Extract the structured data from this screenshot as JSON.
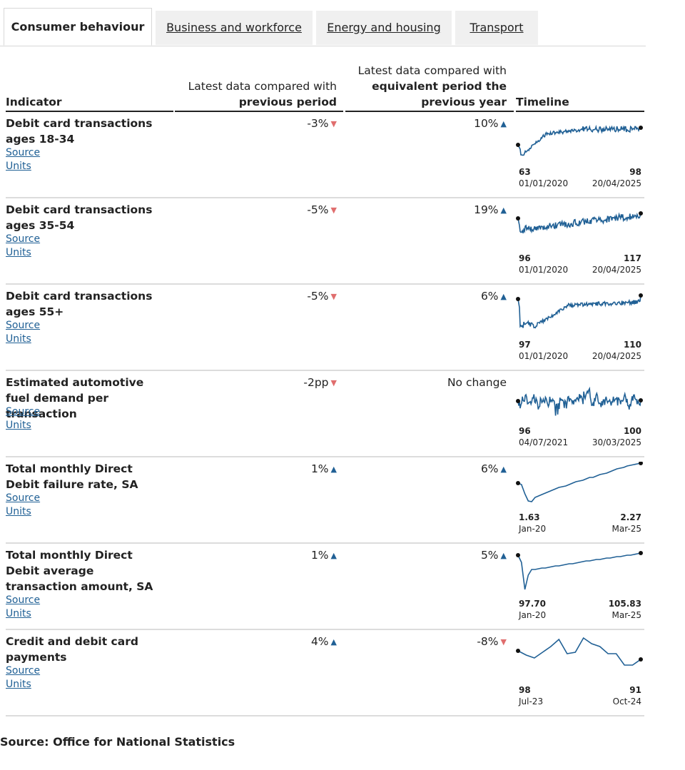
{
  "tabs": [
    {
      "label": "Consumer behaviour",
      "active": true
    },
    {
      "label": "Business and workforce",
      "active": false
    },
    {
      "label": "Energy and housing",
      "active": false
    },
    {
      "label": "Transport",
      "active": false
    }
  ],
  "table_header": {
    "indicator": "Indicator",
    "prev_line1": "Latest data compared with",
    "prev_line2": "previous period",
    "year_line1": "Latest data compared with",
    "year_line2": "equivalent period the",
    "year_line3": "previous year",
    "timeline": "Timeline"
  },
  "colors": {
    "line": "#206095",
    "up_arrow": "#206095",
    "down_arrow": "#e06e6e",
    "link": "#206095"
  },
  "rows": [
    {
      "title": "Debit card transactions ages 18-34",
      "source": "Source",
      "units": "Units",
      "prev": "-3%",
      "prev_dir": "down",
      "year": "10%",
      "year_dir": "up",
      "start_value": "63",
      "end_value": "98",
      "start_date": "01/01/2020",
      "end_date": "20/04/2025"
    },
    {
      "title": "Debit card transactions ages 35-54",
      "source": "Source",
      "units": "Units",
      "prev": "-5%",
      "prev_dir": "down",
      "year": "19%",
      "year_dir": "up",
      "start_value": "96",
      "end_value": "117",
      "start_date": "01/01/2020",
      "end_date": "20/04/2025"
    },
    {
      "title": "Debit card transactions ages 55+",
      "source": "Source",
      "units": "Units",
      "prev": "-5%",
      "prev_dir": "down",
      "year": "6%",
      "year_dir": "up",
      "start_value": "97",
      "end_value": "110",
      "start_date": "01/01/2020",
      "end_date": "20/04/2025"
    },
    {
      "title": "Estimated automotive fuel demand per transaction",
      "source": "Source",
      "units": "Units",
      "prev": "-2pp",
      "prev_dir": "down",
      "year": "No change",
      "year_dir": "none",
      "start_value": "96",
      "end_value": "100",
      "start_date": "04/07/2021",
      "end_date": "30/03/2025"
    },
    {
      "title": "Total monthly Direct Debit failure rate, SA",
      "source": "Source",
      "units": "Units",
      "prev": "1%",
      "prev_dir": "up",
      "year": "6%",
      "year_dir": "up",
      "start_value": "1.63",
      "end_value": "2.27",
      "start_date": "Jan-20",
      "end_date": "Mar-25"
    },
    {
      "title": "Total monthly Direct Debit average transaction amount, SA",
      "source": "Source",
      "units": "Units",
      "prev": "1%",
      "prev_dir": "up",
      "year": "5%",
      "year_dir": "up",
      "start_value": "97.70",
      "end_value": "105.83",
      "start_date": "Jan-20",
      "end_date": "Mar-25"
    },
    {
      "title": "Credit and debit card payments",
      "source": "Source",
      "units": "Units",
      "prev": "4%",
      "prev_dir": "up",
      "year": "-8%",
      "year_dir": "down",
      "start_value": "98",
      "end_value": "91",
      "start_date": "Jul-23",
      "end_date": "Oct-24"
    }
  ],
  "footer": "Source: Office for National Statistics"
}
